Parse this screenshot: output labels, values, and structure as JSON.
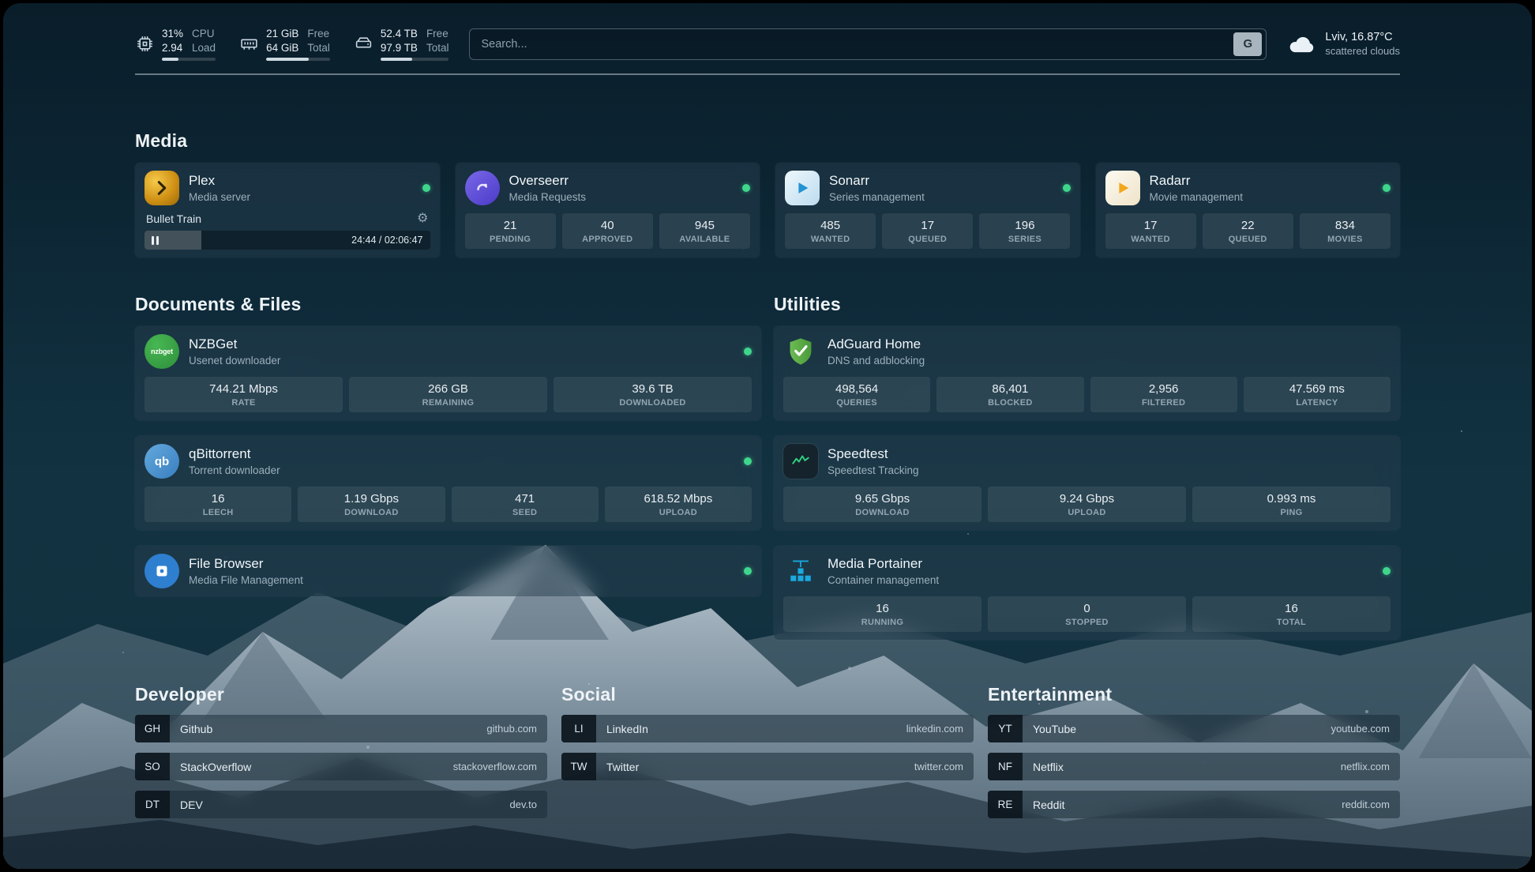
{
  "topbar": {
    "resources": [
      {
        "icon": "cpu-icon",
        "stat1": "31%",
        "stat2": "2.94",
        "label1": "CPU",
        "label2": "Load",
        "percent": 31
      },
      {
        "icon": "memory-icon",
        "stat1": "21 GiB",
        "stat2": "64 GiB",
        "label1": "Free",
        "label2": "Total",
        "percent": 67
      },
      {
        "icon": "disk-icon",
        "stat1": "52.4 TB",
        "stat2": "97.9 TB",
        "label1": "Free",
        "label2": "Total",
        "percent": 46
      }
    ],
    "search": {
      "placeholder": "Search...",
      "provider_button": "G"
    },
    "weather": {
      "summary": "Lviv, 16.87°C",
      "condition": "scattered clouds"
    }
  },
  "sections": {
    "media": "Media",
    "documents": "Documents & Files",
    "utilities": "Utilities"
  },
  "services": {
    "plex": {
      "name": "Plex",
      "description": "Media server",
      "now_playing": {
        "title": "Bullet Train",
        "time": "24:44 / 02:06:47",
        "progress_percent": 20
      }
    },
    "overseerr": {
      "name": "Overseerr",
      "description": "Media Requests",
      "stats": [
        {
          "value": "21",
          "label": "PENDING"
        },
        {
          "value": "40",
          "label": "APPROVED"
        },
        {
          "value": "945",
          "label": "AVAILABLE"
        }
      ]
    },
    "sonarr": {
      "name": "Sonarr",
      "description": "Series management",
      "stats": [
        {
          "value": "485",
          "label": "WANTED"
        },
        {
          "value": "17",
          "label": "QUEUED"
        },
        {
          "value": "196",
          "label": "SERIES"
        }
      ]
    },
    "radarr": {
      "name": "Radarr",
      "description": "Movie management",
      "stats": [
        {
          "value": "17",
          "label": "WANTED"
        },
        {
          "value": "22",
          "label": "QUEUED"
        },
        {
          "value": "834",
          "label": "MOVIES"
        }
      ]
    },
    "nzbget": {
      "name": "NZBGet",
      "description": "Usenet downloader",
      "icon_text": "nzbget",
      "stats": [
        {
          "value": "744.21 Mbps",
          "label": "RATE"
        },
        {
          "value": "266 GB",
          "label": "REMAINING"
        },
        {
          "value": "39.6 TB",
          "label": "DOWNLOADED"
        }
      ]
    },
    "qbittorrent": {
      "name": "qBittorrent",
      "description": "Torrent downloader",
      "icon_text": "qb",
      "stats": [
        {
          "value": "16",
          "label": "LEECH"
        },
        {
          "value": "1.19 Gbps",
          "label": "DOWNLOAD"
        },
        {
          "value": "471",
          "label": "SEED"
        },
        {
          "value": "618.52 Mbps",
          "label": "UPLOAD"
        }
      ]
    },
    "filebrowser": {
      "name": "File Browser",
      "description": "Media File Management"
    },
    "adguard": {
      "name": "AdGuard Home",
      "description": "DNS and adblocking",
      "stats": [
        {
          "value": "498,564",
          "label": "QUERIES"
        },
        {
          "value": "86,401",
          "label": "BLOCKED"
        },
        {
          "value": "2,956",
          "label": "FILTERED"
        },
        {
          "value": "47.569 ms",
          "label": "LATENCY"
        }
      ]
    },
    "speedtest": {
      "name": "Speedtest",
      "description": "Speedtest Tracking",
      "stats": [
        {
          "value": "9.65 Gbps",
          "label": "DOWNLOAD"
        },
        {
          "value": "9.24 Gbps",
          "label": "UPLOAD"
        },
        {
          "value": "0.993 ms",
          "label": "PING"
        }
      ]
    },
    "portainer": {
      "name": "Media Portainer",
      "description": "Container management",
      "stats": [
        {
          "value": "16",
          "label": "RUNNING"
        },
        {
          "value": "0",
          "label": "STOPPED"
        },
        {
          "value": "16",
          "label": "TOTAL"
        }
      ]
    }
  },
  "bookmark_groups": [
    {
      "title": "Developer",
      "items": [
        {
          "abbr": "GH",
          "name": "Github",
          "url": "github.com"
        },
        {
          "abbr": "SO",
          "name": "StackOverflow",
          "url": "stackoverflow.com"
        },
        {
          "abbr": "DT",
          "name": "DEV",
          "url": "dev.to"
        }
      ]
    },
    {
      "title": "Social",
      "items": [
        {
          "abbr": "LI",
          "name": "LinkedIn",
          "url": "linkedin.com"
        },
        {
          "abbr": "TW",
          "name": "Twitter",
          "url": "twitter.com"
        }
      ]
    },
    {
      "title": "Entertainment",
      "items": [
        {
          "abbr": "YT",
          "name": "YouTube",
          "url": "youtube.com"
        },
        {
          "abbr": "NF",
          "name": "Netflix",
          "url": "netflix.com"
        },
        {
          "abbr": "RE",
          "name": "Reddit",
          "url": "reddit.com"
        }
      ]
    }
  ],
  "colors": {
    "status_online": "#3fd68c"
  }
}
